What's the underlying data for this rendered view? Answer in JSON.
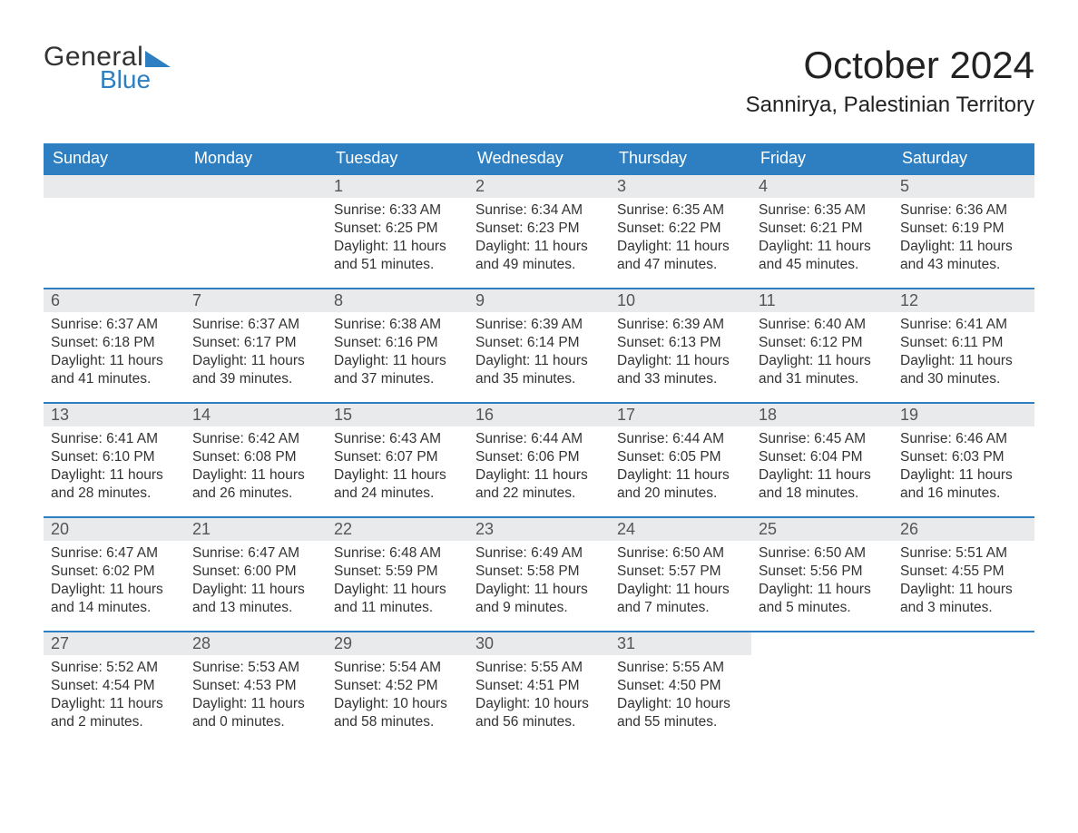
{
  "logo": {
    "word1": "General",
    "word2": "Blue"
  },
  "colors": {
    "header_bg": "#2e7fc1",
    "header_text": "#ffffff",
    "day_bg": "#e9eaeb",
    "rule": "#2e7fc1",
    "page_bg": "#ffffff",
    "text": "#222222"
  },
  "typography": {
    "month_title_pt": 42,
    "location_pt": 24,
    "weekday_pt": 18,
    "daynum_pt": 18,
    "body_pt": 15.5,
    "family": "Arial"
  },
  "title": "October 2024",
  "location": "Sannirya, Palestinian Territory",
  "weekdays": [
    "Sunday",
    "Monday",
    "Tuesday",
    "Wednesday",
    "Thursday",
    "Friday",
    "Saturday"
  ],
  "grid": {
    "rows": 5,
    "cols": 7,
    "first_weekday_index": 2,
    "days_in_month": 31
  },
  "days": {
    "1": {
      "sunrise": "6:33 AM",
      "sunset": "6:25 PM",
      "daylight": "11 hours and 51 minutes."
    },
    "2": {
      "sunrise": "6:34 AM",
      "sunset": "6:23 PM",
      "daylight": "11 hours and 49 minutes."
    },
    "3": {
      "sunrise": "6:35 AM",
      "sunset": "6:22 PM",
      "daylight": "11 hours and 47 minutes."
    },
    "4": {
      "sunrise": "6:35 AM",
      "sunset": "6:21 PM",
      "daylight": "11 hours and 45 minutes."
    },
    "5": {
      "sunrise": "6:36 AM",
      "sunset": "6:19 PM",
      "daylight": "11 hours and 43 minutes."
    },
    "6": {
      "sunrise": "6:37 AM",
      "sunset": "6:18 PM",
      "daylight": "11 hours and 41 minutes."
    },
    "7": {
      "sunrise": "6:37 AM",
      "sunset": "6:17 PM",
      "daylight": "11 hours and 39 minutes."
    },
    "8": {
      "sunrise": "6:38 AM",
      "sunset": "6:16 PM",
      "daylight": "11 hours and 37 minutes."
    },
    "9": {
      "sunrise": "6:39 AM",
      "sunset": "6:14 PM",
      "daylight": "11 hours and 35 minutes."
    },
    "10": {
      "sunrise": "6:39 AM",
      "sunset": "6:13 PM",
      "daylight": "11 hours and 33 minutes."
    },
    "11": {
      "sunrise": "6:40 AM",
      "sunset": "6:12 PM",
      "daylight": "11 hours and 31 minutes."
    },
    "12": {
      "sunrise": "6:41 AM",
      "sunset": "6:11 PM",
      "daylight": "11 hours and 30 minutes."
    },
    "13": {
      "sunrise": "6:41 AM",
      "sunset": "6:10 PM",
      "daylight": "11 hours and 28 minutes."
    },
    "14": {
      "sunrise": "6:42 AM",
      "sunset": "6:08 PM",
      "daylight": "11 hours and 26 minutes."
    },
    "15": {
      "sunrise": "6:43 AM",
      "sunset": "6:07 PM",
      "daylight": "11 hours and 24 minutes."
    },
    "16": {
      "sunrise": "6:44 AM",
      "sunset": "6:06 PM",
      "daylight": "11 hours and 22 minutes."
    },
    "17": {
      "sunrise": "6:44 AM",
      "sunset": "6:05 PM",
      "daylight": "11 hours and 20 minutes."
    },
    "18": {
      "sunrise": "6:45 AM",
      "sunset": "6:04 PM",
      "daylight": "11 hours and 18 minutes."
    },
    "19": {
      "sunrise": "6:46 AM",
      "sunset": "6:03 PM",
      "daylight": "11 hours and 16 minutes."
    },
    "20": {
      "sunrise": "6:47 AM",
      "sunset": "6:02 PM",
      "daylight": "11 hours and 14 minutes."
    },
    "21": {
      "sunrise": "6:47 AM",
      "sunset": "6:00 PM",
      "daylight": "11 hours and 13 minutes."
    },
    "22": {
      "sunrise": "6:48 AM",
      "sunset": "5:59 PM",
      "daylight": "11 hours and 11 minutes."
    },
    "23": {
      "sunrise": "6:49 AM",
      "sunset": "5:58 PM",
      "daylight": "11 hours and 9 minutes."
    },
    "24": {
      "sunrise": "6:50 AM",
      "sunset": "5:57 PM",
      "daylight": "11 hours and 7 minutes."
    },
    "25": {
      "sunrise": "6:50 AM",
      "sunset": "5:56 PM",
      "daylight": "11 hours and 5 minutes."
    },
    "26": {
      "sunrise": "5:51 AM",
      "sunset": "4:55 PM",
      "daylight": "11 hours and 3 minutes."
    },
    "27": {
      "sunrise": "5:52 AM",
      "sunset": "4:54 PM",
      "daylight": "11 hours and 2 minutes."
    },
    "28": {
      "sunrise": "5:53 AM",
      "sunset": "4:53 PM",
      "daylight": "11 hours and 0 minutes."
    },
    "29": {
      "sunrise": "5:54 AM",
      "sunset": "4:52 PM",
      "daylight": "10 hours and 58 minutes."
    },
    "30": {
      "sunrise": "5:55 AM",
      "sunset": "4:51 PM",
      "daylight": "10 hours and 56 minutes."
    },
    "31": {
      "sunrise": "5:55 AM",
      "sunset": "4:50 PM",
      "daylight": "10 hours and 55 minutes."
    }
  },
  "labels": {
    "sunrise_prefix": "Sunrise: ",
    "sunset_prefix": "Sunset: ",
    "daylight_prefix": "Daylight: "
  }
}
